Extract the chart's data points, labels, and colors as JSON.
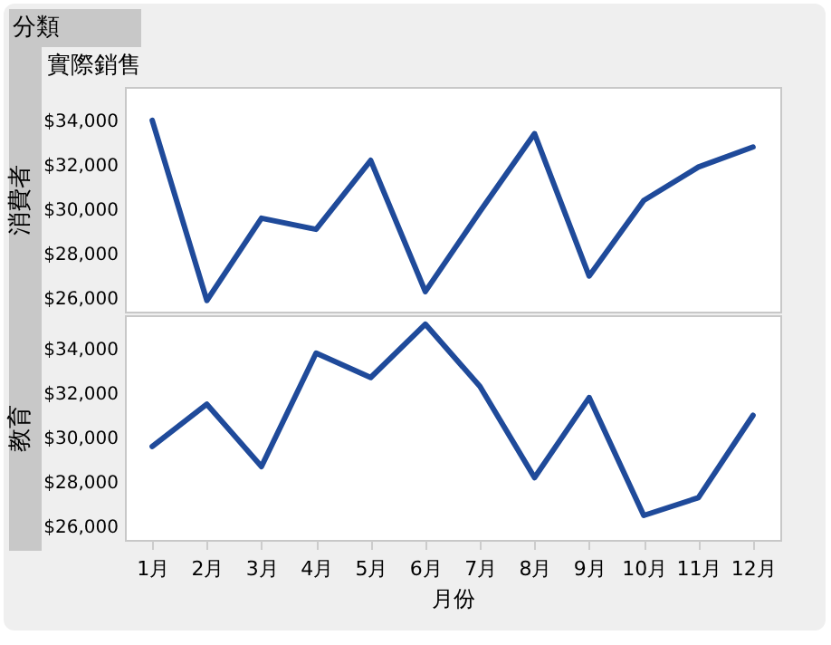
{
  "chart_data": [
    {
      "type": "line",
      "title": "實際銷售",
      "annotations": [
        "分類"
      ],
      "ylabel": "消費者",
      "categories": [
        null,
        null,
        null,
        null,
        null,
        null,
        null,
        null,
        null,
        null,
        null,
        null
      ],
      "series": [
        {
          "color": "#1f4a9a",
          "values": [
            34000,
            25900,
            29600,
            29100,
            32200,
            26300,
            29900,
            33400,
            27000,
            30400,
            31900,
            32800
          ]
        }
      ],
      "ylim": [
        25400,
        35500
      ],
      "yticks": [
        {
          "value": 26000,
          "label": "$26,000"
        },
        {
          "value": 28000,
          "label": "$28,000"
        },
        {
          "value": 30000,
          "label": "$30,000"
        },
        {
          "value": 32000,
          "label": "$32,000"
        },
        {
          "value": 34000,
          "label": "$34,000"
        }
      ],
      "grid": false,
      "legend": false,
      "tick_labels": "y"
    },
    {
      "type": "line",
      "ylabel": "教育",
      "xlabel": "月份",
      "categories": [
        "1月",
        "2月",
        "3月",
        "4月",
        "5月",
        "6月",
        "7月",
        "8月",
        "9月",
        "10月",
        "11月",
        "12月"
      ],
      "series": [
        {
          "color": "#1f4a9a",
          "values": [
            29600,
            31500,
            28700,
            33800,
            32700,
            35100,
            32300,
            28200,
            31800,
            26500,
            27300,
            31000
          ]
        }
      ],
      "ylim": [
        25400,
        35500
      ],
      "yticks": [
        {
          "value": 26000,
          "label": "$26,000"
        },
        {
          "value": 28000,
          "label": "$28,000"
        },
        {
          "value": 30000,
          "label": "$30,000"
        },
        {
          "value": 32000,
          "label": "$32,000"
        },
        {
          "value": 34000,
          "label": "$34,000"
        }
      ],
      "grid": false,
      "legend": false
    }
  ]
}
